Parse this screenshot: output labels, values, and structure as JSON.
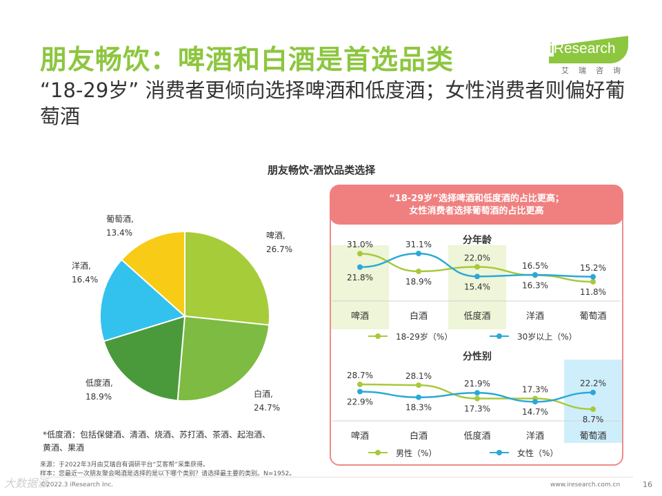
{
  "page": {
    "title": "朋友畅饮：啤酒和白酒是首选品类",
    "subtitle": "“18-29岁” 消费者更倾向选择啤酒和低度酒；女性消费者则偏好葡萄酒",
    "logo": {
      "word": "iResearch",
      "cn": "艾瑞咨询"
    },
    "chart_title": "朋友畅饮-酒饮品类选择",
    "note": "*低度酒：包括保健酒、清酒、烧酒、苏打酒、茶酒、起泡酒、黄酒、果酒",
    "source_line1": "来源：于2022年3月由艾瑞自有调研平台“艾客帮”采集获得。",
    "source_line2": "样本：您最近一次朋友聚会喝酒是选择的是以下哪个类别？请选择最主要的类别。N=1952。",
    "footer_left": "©2022.3 iResearch Inc.",
    "footer_right": "www.iresearch.com.cn",
    "page_number": "16",
    "watermark": "大数据派",
    "banner_line1": "“18-29岁”选择啤酒和低度酒的占比更高；",
    "banner_line2": "女性消费者选择葡萄酒的占比更高"
  },
  "colors": {
    "brand_green": "#8dc63f",
    "beer": "#a6cc3a",
    "baijiu": "#7dbb42",
    "lowabv": "#4a9a3c",
    "yangjiu": "#33c1ee",
    "wine": "#f8cb16",
    "line_green": "#a8c93a",
    "line_blue": "#2aa8d8",
    "highlight_green": "#eef5d8",
    "highlight_blue": "#cfeefb",
    "banner": "#f08080"
  },
  "chart_data": [
    {
      "type": "pie",
      "title": "朋友畅饮-酒饮品类选择",
      "slices": [
        {
          "label": "啤酒,",
          "value": 26.7,
          "value_label": "26.7%"
        },
        {
          "label": "白酒,",
          "value": 24.7,
          "value_label": "24.7%"
        },
        {
          "label": "低度酒,",
          "value": 18.9,
          "value_label": "18.9%"
        },
        {
          "label": "洋酒,",
          "value": 16.4,
          "value_label": "16.4%"
        },
        {
          "label": "葡萄酒,",
          "value": 13.4,
          "value_label": "13.4%"
        }
      ]
    },
    {
      "type": "line",
      "title": "分年龄",
      "categories": [
        "啤酒",
        "白酒",
        "低度酒",
        "洋酒",
        "葡萄酒"
      ],
      "highlight_categories": [
        "啤酒",
        "低度酒"
      ],
      "series": [
        {
          "name": "18-29岁（%）",
          "values": [
            31.0,
            18.9,
            22.0,
            16.3,
            11.8
          ],
          "labels": [
            "31.0%",
            "18.9%",
            "22.0%",
            "16.3%",
            "11.8%"
          ]
        },
        {
          "name": "30岁以上（%）",
          "values": [
            21.8,
            31.1,
            15.4,
            16.5,
            15.2
          ],
          "labels": [
            "21.8%",
            "31.1%",
            "15.4%",
            "16.5%",
            "15.2%"
          ]
        }
      ]
    },
    {
      "type": "line",
      "title": "分性别",
      "categories": [
        "啤酒",
        "白酒",
        "低度酒",
        "洋酒",
        "葡萄酒"
      ],
      "highlight_categories": [
        "葡萄酒"
      ],
      "series": [
        {
          "name": "男性（%）",
          "values": [
            28.7,
            28.1,
            17.3,
            17.3,
            8.7
          ],
          "labels": [
            "28.7%",
            "28.1%",
            "17.3%",
            "17.3%",
            "8.7%"
          ]
        },
        {
          "name": "女性（%）",
          "values": [
            22.9,
            18.3,
            21.9,
            14.7,
            22.2
          ],
          "labels": [
            "22.9%",
            "18.3%",
            "21.9%",
            "14.7%",
            "22.2%"
          ]
        }
      ]
    }
  ]
}
